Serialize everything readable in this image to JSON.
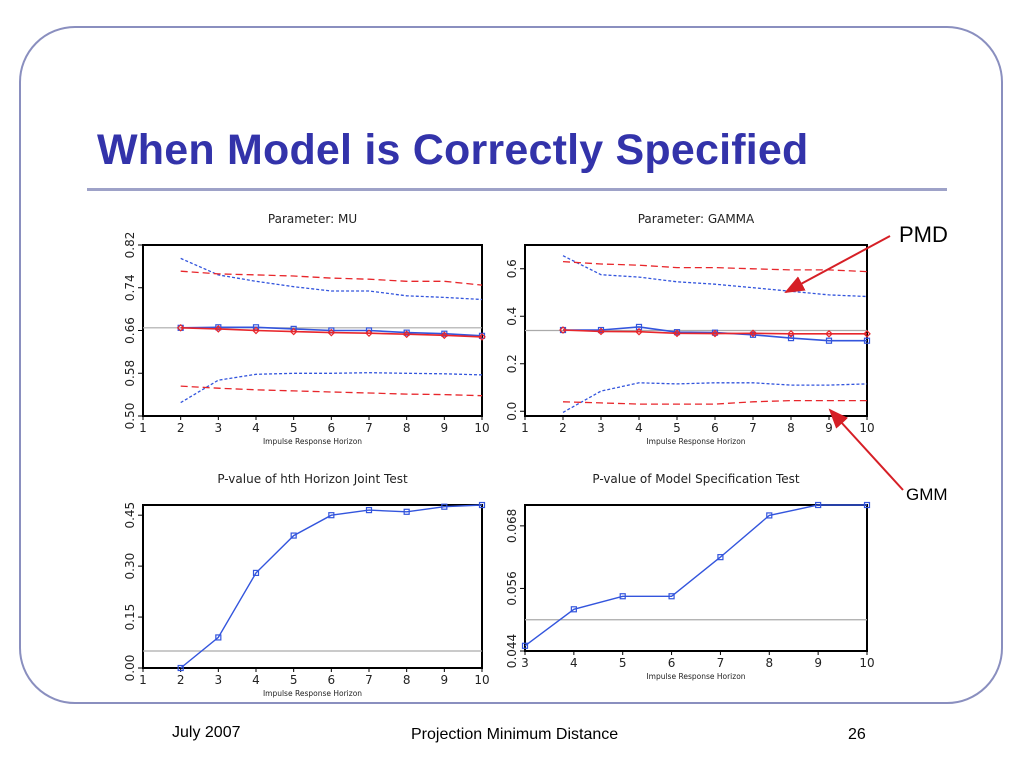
{
  "slide": {
    "title": "When Model is Correctly Specified",
    "footer_date": "July 2007",
    "footer_center": "Projection Minimum Distance",
    "page_number": "26",
    "callouts": {
      "pmd": "PMD",
      "gmm": "GMM"
    },
    "colors": {
      "title": "#3333aa",
      "pmd": "#3355dd",
      "gmm": "#e8262b",
      "reference": "#aaaaaa",
      "arrow": "#d61f26"
    }
  },
  "chart_data": [
    {
      "type": "line",
      "title": "Parameter: MU",
      "xlabel": "Impulse Response Horizon",
      "ylabel": "",
      "xlim": [
        1,
        10
      ],
      "ylim": [
        0.5,
        0.82
      ],
      "xticks": [
        "1",
        "2",
        "3",
        "4",
        "5",
        "6",
        "7",
        "8",
        "9",
        "10"
      ],
      "yticks": [
        "0.50",
        "0.58",
        "0.66",
        "0.74",
        "0.82"
      ],
      "x": [
        2,
        3,
        4,
        5,
        6,
        7,
        8,
        9,
        10
      ],
      "reference_line": 0.665,
      "series": [
        {
          "role": "pmd-estimate",
          "style": "solid-square",
          "values": [
            0.665,
            0.666,
            0.666,
            0.663,
            0.66,
            0.66,
            0.656,
            0.654,
            0.65
          ]
        },
        {
          "role": "gmm-estimate",
          "style": "solid-diamond",
          "values": [
            0.665,
            0.663,
            0.66,
            0.658,
            0.656,
            0.655,
            0.653,
            0.651,
            0.648
          ]
        },
        {
          "role": "pmd-upper",
          "style": "dotted",
          "values": [
            0.795,
            0.764,
            0.752,
            0.742,
            0.734,
            0.734,
            0.725,
            0.722,
            0.718
          ]
        },
        {
          "role": "pmd-lower",
          "style": "dotted",
          "values": [
            0.525,
            0.567,
            0.578,
            0.58,
            0.58,
            0.581,
            0.58,
            0.579,
            0.577
          ]
        },
        {
          "role": "gmm-upper",
          "style": "dashed",
          "values": [
            0.771,
            0.766,
            0.764,
            0.762,
            0.758,
            0.756,
            0.752,
            0.752,
            0.745
          ]
        },
        {
          "role": "gmm-lower",
          "style": "dashed",
          "values": [
            0.556,
            0.552,
            0.549,
            0.547,
            0.545,
            0.543,
            0.541,
            0.54,
            0.538
          ]
        }
      ]
    },
    {
      "type": "line",
      "title": "Parameter: GAMMA",
      "xlabel": "Impulse Response Horizon",
      "ylabel": "",
      "xlim": [
        1,
        10
      ],
      "ylim": [
        -0.02,
        0.7
      ],
      "xticks": [
        "1",
        "2",
        "3",
        "4",
        "5",
        "6",
        "7",
        "8",
        "9",
        "10"
      ],
      "yticks": [
        "0.0",
        "0.2",
        "0.4",
        "0.6"
      ],
      "x": [
        2,
        3,
        4,
        5,
        6,
        7,
        8,
        9,
        10
      ],
      "reference_line": 0.34,
      "series": [
        {
          "role": "pmd-estimate",
          "style": "solid-square",
          "values": [
            0.342,
            0.342,
            0.355,
            0.333,
            0.331,
            0.322,
            0.308,
            0.297,
            0.297
          ]
        },
        {
          "role": "gmm-estimate",
          "style": "solid-diamond",
          "values": [
            0.342,
            0.336,
            0.335,
            0.328,
            0.327,
            0.328,
            0.326,
            0.326,
            0.326
          ]
        },
        {
          "role": "pmd-upper",
          "style": "dotted",
          "values": [
            0.655,
            0.575,
            0.565,
            0.545,
            0.535,
            0.52,
            0.505,
            0.49,
            0.483
          ]
        },
        {
          "role": "pmd-lower",
          "style": "dotted",
          "values": [
            -0.005,
            0.085,
            0.12,
            0.115,
            0.12,
            0.12,
            0.11,
            0.11,
            0.115
          ]
        },
        {
          "role": "gmm-upper",
          "style": "dashed",
          "values": [
            0.63,
            0.62,
            0.615,
            0.605,
            0.605,
            0.6,
            0.595,
            0.595,
            0.588
          ]
        },
        {
          "role": "gmm-lower",
          "style": "dashed",
          "values": [
            0.04,
            0.035,
            0.03,
            0.03,
            0.03,
            0.04,
            0.045,
            0.045,
            0.045
          ]
        }
      ]
    },
    {
      "type": "line",
      "title": "P-value of hth Horizon Joint Test",
      "xlabel": "Impulse Response Horizon",
      "ylabel": "",
      "xlim": [
        1,
        10
      ],
      "ylim": [
        0.0,
        0.48
      ],
      "xticks": [
        "1",
        "2",
        "3",
        "4",
        "5",
        "6",
        "7",
        "8",
        "9",
        "10"
      ],
      "yticks": [
        "0.00",
        "0.15",
        "0.30",
        "0.45"
      ],
      "x": [
        2,
        3,
        4,
        5,
        6,
        7,
        8,
        9,
        10
      ],
      "reference_line": 0.05,
      "series": [
        {
          "role": "p-value",
          "style": "solid-square",
          "values": [
            0.0,
            0.09,
            0.28,
            0.39,
            0.45,
            0.465,
            0.46,
            0.475,
            0.48
          ]
        }
      ]
    },
    {
      "type": "line",
      "title": "P-value of Model Specification Test",
      "xlabel": "Impulse Response Horizon",
      "ylabel": "",
      "xlim": [
        3,
        10
      ],
      "ylim": [
        0.044,
        0.072
      ],
      "xticks": [
        "3",
        "4",
        "5",
        "6",
        "7",
        "8",
        "9",
        "10"
      ],
      "yticks": [
        "0.044",
        "0.056",
        "0.068"
      ],
      "x": [
        3,
        4,
        5,
        6,
        7,
        8,
        9,
        10
      ],
      "reference_line": 0.05,
      "series": [
        {
          "role": "p-value",
          "style": "solid-square",
          "values": [
            0.045,
            0.052,
            0.0545,
            0.0545,
            0.062,
            0.07,
            0.072,
            0.072
          ]
        }
      ]
    }
  ]
}
